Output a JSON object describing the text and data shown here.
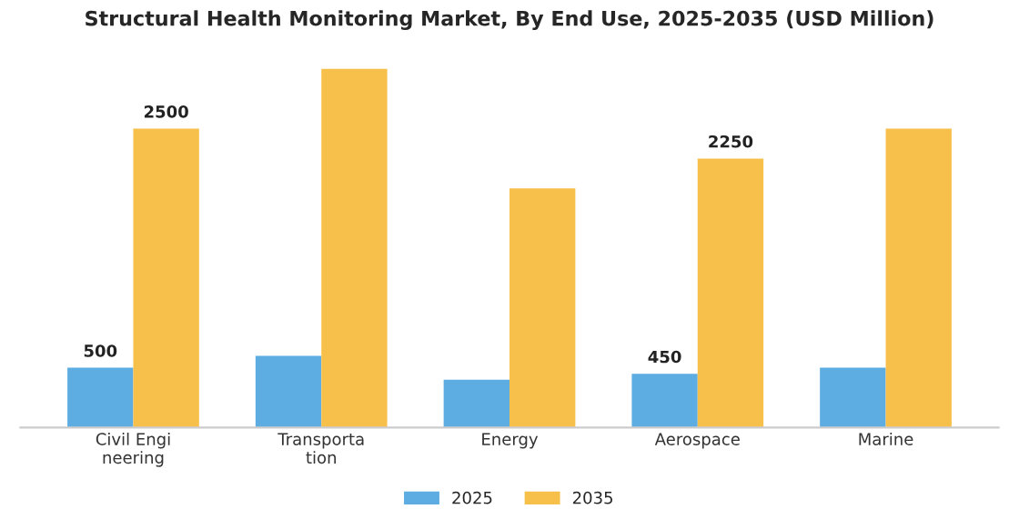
{
  "chart_data": {
    "type": "bar",
    "title": "Structural Health Monitoring Market, By End Use, 2025-2035 (USD Million)",
    "categories": [
      "Civil Engi\nneering",
      "Transporta\ntion",
      "Energy",
      "Aerospace",
      "Marine"
    ],
    "series": [
      {
        "name": "2025",
        "color": "#5dade2",
        "values": [
          500,
          600,
          400,
          450,
          500
        ],
        "value_labels": [
          "500",
          null,
          null,
          "450",
          null
        ]
      },
      {
        "name": "2035",
        "color": "#f7c04a",
        "values": [
          2500,
          3000,
          2000,
          2250,
          2500
        ],
        "value_labels": [
          "2500",
          null,
          null,
          "2250",
          null
        ]
      }
    ],
    "legend": "bottom",
    "grid": false
  }
}
